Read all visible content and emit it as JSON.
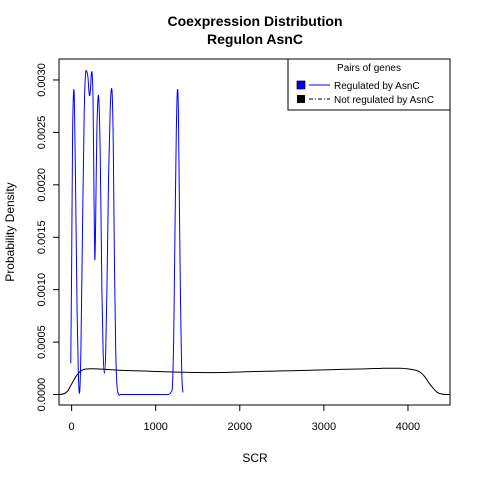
{
  "chart_data": {
    "type": "line",
    "title": "Coexpression Distribution",
    "subtitle": "Regulon AsnC",
    "xlabel": "SCR",
    "ylabel": "Probability Density",
    "xlim": [
      -150,
      4500
    ],
    "ylim": [
      -0.0001,
      0.0032
    ],
    "xticks": [
      0,
      1000,
      2000,
      3000,
      4000
    ],
    "xtick_labels": [
      "0",
      "1000",
      "2000",
      "3000",
      "4000"
    ],
    "yticks": [
      0.0,
      0.0005,
      0.001,
      0.0015,
      0.002,
      0.0025,
      0.003
    ],
    "ytick_labels": [
      "0.0000",
      "0.0005",
      "0.0010",
      "0.0015",
      "0.0020",
      "0.0025",
      "0.0030"
    ],
    "grid": false,
    "legend": {
      "title": "Pairs of genes",
      "placement": "top-right",
      "entries": [
        "Regulated by  AsnC",
        "Not regulated by  AsnC"
      ]
    },
    "series": [
      {
        "name": "Regulated by  AsnC",
        "color": "#0000ff",
        "line": "solid",
        "x": [
          -10,
          0,
          12,
          25,
          35,
          50,
          65,
          80,
          95,
          110,
          130,
          150,
          165,
          180,
          195,
          205,
          215,
          225,
          235,
          245,
          255,
          265,
          275,
          285,
          300,
          320,
          340,
          360,
          375,
          390,
          405,
          420,
          440,
          460,
          480,
          495,
          510,
          525,
          540,
          560,
          580,
          600,
          700,
          800,
          900,
          1000,
          1100,
          1150,
          1180,
          1200,
          1215,
          1230,
          1245,
          1258,
          1270,
          1282,
          1295,
          1305,
          1315,
          1325
        ],
        "y": [
          0.0003,
          0.0012,
          0.0025,
          0.0029,
          0.0027,
          0.0018,
          0.0008,
          0.0002,
          2e-05,
          0.0004,
          0.0016,
          0.0027,
          0.00305,
          0.00308,
          0.00302,
          0.0029,
          0.00285,
          0.00292,
          0.00306,
          0.00305,
          0.0028,
          0.002,
          0.0013,
          0.0016,
          0.0025,
          0.00285,
          0.0023,
          0.001,
          0.0004,
          0.0002,
          0.0004,
          0.001,
          0.0021,
          0.00275,
          0.0029,
          0.0024,
          0.0012,
          0.0004,
          8e-05,
          0.0,
          0.0,
          0.0,
          0.0,
          0.0,
          0.0,
          0.0,
          0.0,
          0.0,
          2e-05,
          0.0001,
          0.0006,
          0.0016,
          0.0025,
          0.0029,
          0.0027,
          0.0018,
          0.0009,
          0.0004,
          0.0001,
          2e-05
        ]
      },
      {
        "name": "Not regulated by  AsnC",
        "color": "#000000",
        "line": "solid",
        "x": [
          -150,
          -100,
          -50,
          0,
          50,
          100,
          150,
          200,
          300,
          400,
          500,
          600,
          800,
          1000,
          1200,
          1500,
          1800,
          2000,
          2200,
          2500,
          2800,
          3000,
          3200,
          3500,
          3700,
          3900,
          4000,
          4100,
          4150,
          4200,
          4250,
          4300,
          4350,
          4400,
          4450,
          4500
        ],
        "y": [
          0.0,
          5e-06,
          3e-05,
          0.0001,
          0.00017,
          0.00022,
          0.00024,
          0.000245,
          0.000245,
          0.00024,
          0.000235,
          0.00023,
          0.000225,
          0.00022,
          0.000215,
          0.00021,
          0.00021,
          0.000215,
          0.00022,
          0.000225,
          0.00023,
          0.000235,
          0.00024,
          0.000245,
          0.00025,
          0.00025,
          0.000245,
          0.00023,
          0.00021,
          0.00017,
          0.00011,
          6e-05,
          2e-05,
          5e-06,
          0.0,
          0.0
        ]
      }
    ]
  }
}
